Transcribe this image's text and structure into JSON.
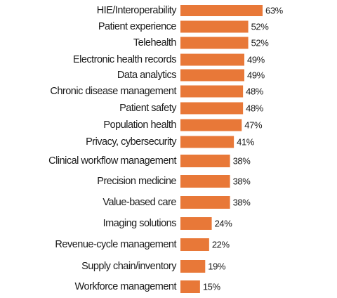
{
  "chart_data": {
    "type": "bar",
    "orientation": "horizontal",
    "categories": [
      "HIE/Interoperability",
      "Patient experience",
      "Telehealth",
      "Electronic health records",
      "Data analytics",
      "Chronic disease management",
      "Patient safety",
      "Population health",
      "Privacy, cybersecurity",
      "Clinical workflow management",
      "Precision medicine",
      "Value-based care",
      "Imaging solutions",
      "Revenue-cycle management",
      "Supply chain/inventory",
      "Workforce management"
    ],
    "values": [
      63,
      52,
      52,
      49,
      49,
      48,
      48,
      47,
      41,
      38,
      38,
      38,
      24,
      22,
      19,
      15
    ],
    "value_labels": [
      "63%",
      "52%",
      "52%",
      "49%",
      "49%",
      "48%",
      "48%",
      "47%",
      "41%",
      "38%",
      "38%",
      "38%",
      "24%",
      "22%",
      "19%",
      "15%"
    ],
    "title": "",
    "xlabel": "",
    "ylabel": "",
    "xlim": [
      0,
      63
    ],
    "grid": false,
    "legend": "none",
    "bar_color": "#E87838",
    "text_color": "#1a1a1a"
  }
}
